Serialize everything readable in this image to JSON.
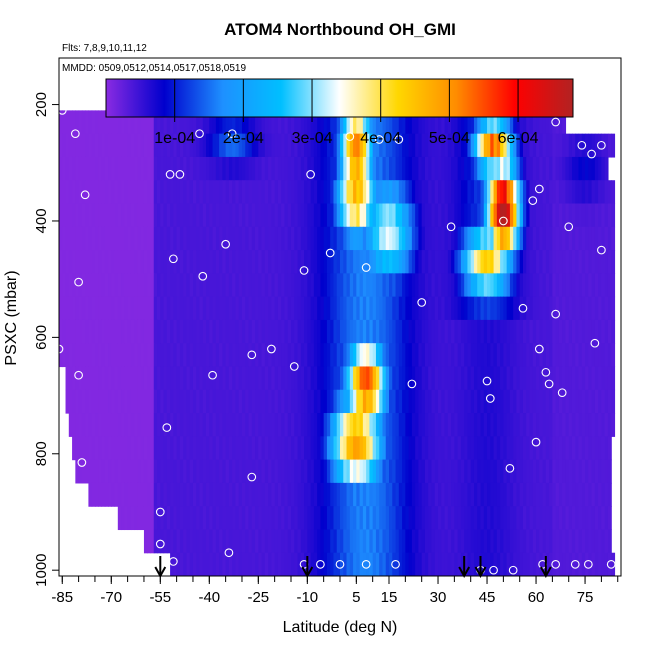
{
  "chart_data": {
    "type": "heatmap",
    "title": "ATOM4 Northbound OH_GMI",
    "flights_note": "Flts: 7,8,9,10,11,12",
    "dates_note": "MMDD: 0509,0512,0514,0517,0518,0519",
    "xlabel": "Latitude (deg N)",
    "ylabel": "PSXC (mbar)",
    "xlim": [
      -86,
      86
    ],
    "ylim": [
      1010,
      120
    ],
    "x_ticks": [
      -85,
      -70,
      -55,
      -40,
      -25,
      -10,
      5,
      15,
      30,
      45,
      60,
      75
    ],
    "y_ticks": [
      200,
      400,
      600,
      800,
      1000
    ],
    "colorbar": {
      "range": [
        0,
        0.00068
      ],
      "ticks": [
        0.0001,
        0.0002,
        0.0003,
        0.0004,
        0.0005,
        0.0006
      ],
      "tick_labels": [
        "1e-04",
        "2e-04",
        "3e-04",
        "4e-04",
        "5e-04",
        "6e-04"
      ],
      "colors": [
        "#8a2be2",
        "#0000cd",
        "#1e90ff",
        "#00bfff",
        "#ffffff",
        "#ffd700",
        "#ff8c00",
        "#ff0000",
        "#b22222"
      ]
    },
    "pressure_levels": [
      170,
      210,
      250,
      290,
      330,
      370,
      410,
      450,
      490,
      530,
      570,
      610,
      650,
      690,
      730,
      770,
      810,
      850,
      890,
      930,
      970,
      1000
    ],
    "hotspots": [
      {
        "lat": 5,
        "pres": 280,
        "value": 0.00048,
        "width": 5,
        "height": 90
      },
      {
        "lat": 5,
        "pres": 360,
        "value": 0.00043,
        "width": 6,
        "height": 70
      },
      {
        "lat": 50,
        "pres": 380,
        "value": 0.00066,
        "width": 5,
        "height": 80
      },
      {
        "lat": 47,
        "pres": 270,
        "value": 0.0005,
        "width": 6,
        "height": 50
      },
      {
        "lat": 8,
        "pres": 680,
        "value": 0.00052,
        "width": 6,
        "height": 70
      },
      {
        "lat": 5,
        "pres": 780,
        "value": 0.00045,
        "width": 8,
        "height": 80
      },
      {
        "lat": 45,
        "pres": 470,
        "value": 0.0004,
        "width": 8,
        "height": 60
      },
      {
        "lat": 15,
        "pres": 420,
        "value": 0.0003,
        "width": 8,
        "height": 90
      }
    ],
    "observations": [
      {
        "lat": -85,
        "pres": 210
      },
      {
        "lat": -81,
        "pres": 250
      },
      {
        "lat": -78,
        "pres": 355
      },
      {
        "lat": -80,
        "pres": 505
      },
      {
        "lat": -86,
        "pres": 620
      },
      {
        "lat": -80,
        "pres": 665
      },
      {
        "lat": -79,
        "pres": 815
      },
      {
        "lat": -70,
        "pres": 200
      },
      {
        "lat": -55,
        "pres": 900
      },
      {
        "lat": -55,
        "pres": 955
      },
      {
        "lat": -51,
        "pres": 985
      },
      {
        "lat": -53,
        "pres": 755
      },
      {
        "lat": -51,
        "pres": 465
      },
      {
        "lat": -52,
        "pres": 320
      },
      {
        "lat": -49,
        "pres": 320
      },
      {
        "lat": -43,
        "pres": 250
      },
      {
        "lat": -42,
        "pres": 495
      },
      {
        "lat": -39,
        "pres": 665
      },
      {
        "lat": -35,
        "pres": 440
      },
      {
        "lat": -33,
        "pres": 250
      },
      {
        "lat": -37,
        "pres": 210
      },
      {
        "lat": -34,
        "pres": 970
      },
      {
        "lat": -27,
        "pres": 840
      },
      {
        "lat": -27,
        "pres": 630
      },
      {
        "lat": -25,
        "pres": 210
      },
      {
        "lat": -21,
        "pres": 620
      },
      {
        "lat": -14,
        "pres": 650
      },
      {
        "lat": -11,
        "pres": 485
      },
      {
        "lat": -9,
        "pres": 320
      },
      {
        "lat": -3,
        "pres": 455
      },
      {
        "lat": 3,
        "pres": 255
      },
      {
        "lat": 8,
        "pres": 480
      },
      {
        "lat": 12,
        "pres": 260
      },
      {
        "lat": 18,
        "pres": 260
      },
      {
        "lat": 22,
        "pres": 680
      },
      {
        "lat": 25,
        "pres": 540
      },
      {
        "lat": 17,
        "pres": 990
      },
      {
        "lat": 8,
        "pres": 990
      },
      {
        "lat": 0,
        "pres": 990
      },
      {
        "lat": -6,
        "pres": 990
      },
      {
        "lat": -11,
        "pres": 990
      },
      {
        "lat": 45,
        "pres": 675
      },
      {
        "lat": 46,
        "pres": 705
      },
      {
        "lat": 47,
        "pres": 1000
      },
      {
        "lat": 43,
        "pres": 1000
      },
      {
        "lat": 52,
        "pres": 825
      },
      {
        "lat": 53,
        "pres": 1000
      },
      {
        "lat": 56,
        "pres": 550
      },
      {
        "lat": 59,
        "pres": 365
      },
      {
        "lat": 60,
        "pres": 780
      },
      {
        "lat": 61,
        "pres": 345
      },
      {
        "lat": 62,
        "pres": 990
      },
      {
        "lat": 64,
        "pres": 680
      },
      {
        "lat": 66,
        "pres": 990
      },
      {
        "lat": 68,
        "pres": 695
      },
      {
        "lat": 70,
        "pres": 410
      },
      {
        "lat": 72,
        "pres": 990
      },
      {
        "lat": 74,
        "pres": 270
      },
      {
        "lat": 76,
        "pres": 990
      },
      {
        "lat": 78,
        "pres": 610
      },
      {
        "lat": 80,
        "pres": 450
      },
      {
        "lat": 80,
        "pres": 270
      },
      {
        "lat": 82,
        "pres": 210
      },
      {
        "lat": 83,
        "pres": 990
      },
      {
        "lat": 77,
        "pres": 285
      },
      {
        "lat": 66,
        "pres": 560
      },
      {
        "lat": 63,
        "pres": 660
      },
      {
        "lat": 66,
        "pres": 230
      },
      {
        "lat": 61,
        "pres": 620
      },
      {
        "lat": 48,
        "pres": 210
      },
      {
        "lat": 50,
        "pres": 400
      },
      {
        "lat": 34,
        "pres": 410
      }
    ],
    "arrows_lat": [
      -55,
      -10,
      38,
      43,
      63
    ],
    "coverage": [
      {
        "pres": 190,
        "lat_min": -68,
        "lat_max": 53
      },
      {
        "pres": 230,
        "lat_min": -86,
        "lat_max": 69
      },
      {
        "pres": 270,
        "lat_min": -86,
        "lat_max": 84
      },
      {
        "pres": 310,
        "lat_min": -86,
        "lat_max": 82
      },
      {
        "pres": 350,
        "lat_min": -86,
        "lat_max": 84
      },
      {
        "pres": 390,
        "lat_min": -86,
        "lat_max": 84
      },
      {
        "pres": 430,
        "lat_min": -86,
        "lat_max": 84
      },
      {
        "pres": 470,
        "lat_min": -86,
        "lat_max": 84
      },
      {
        "pres": 510,
        "lat_min": -86,
        "lat_max": 84
      },
      {
        "pres": 550,
        "lat_min": -86,
        "lat_max": 84
      },
      {
        "pres": 590,
        "lat_min": -86,
        "lat_max": 84
      },
      {
        "pres": 630,
        "lat_min": -86,
        "lat_max": 84
      },
      {
        "pres": 670,
        "lat_min": -84,
        "lat_max": 84
      },
      {
        "pres": 710,
        "lat_min": -84,
        "lat_max": 84
      },
      {
        "pres": 750,
        "lat_min": -83,
        "lat_max": 84
      },
      {
        "pres": 790,
        "lat_min": -82,
        "lat_max": 83
      },
      {
        "pres": 830,
        "lat_min": -81,
        "lat_max": 83
      },
      {
        "pres": 870,
        "lat_min": -77,
        "lat_max": 83
      },
      {
        "pres": 910,
        "lat_min": -68,
        "lat_max": 83
      },
      {
        "pres": 950,
        "lat_min": -60,
        "lat_max": 83
      },
      {
        "pres": 990,
        "lat_min": -52,
        "lat_max": 84
      }
    ]
  }
}
